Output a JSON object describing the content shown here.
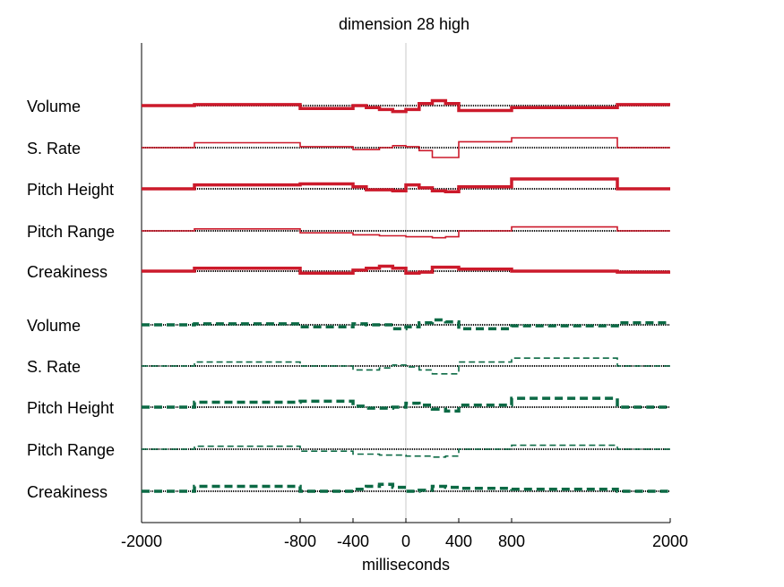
{
  "chart_data": {
    "type": "line",
    "title": "dimension 28 high",
    "xlabel": "milliseconds",
    "ylabel": "",
    "xlim": [
      -2000,
      2000
    ],
    "xticks": [
      -2000,
      -800,
      -400,
      0,
      400,
      800,
      2000
    ],
    "grid": false,
    "colors": {
      "high_group": "#cc1a2b",
      "low_group": "#0c6a45",
      "baseline": "#000000",
      "zero_line": "#c8c8c8"
    },
    "series": [
      {
        "label": "Volume",
        "group": "red",
        "style": "solid",
        "weight": "thick",
        "points": [
          [
            -2000,
            0
          ],
          [
            -1600,
            0
          ],
          [
            -1600,
            0.5
          ],
          [
            -800,
            0.5
          ],
          [
            -800,
            -1.5
          ],
          [
            -400,
            -1.5
          ],
          [
            -400,
            0
          ],
          [
            -300,
            0
          ],
          [
            -300,
            -1
          ],
          [
            -200,
            -1
          ],
          [
            -200,
            -2
          ],
          [
            -100,
            -2
          ],
          [
            -100,
            -3
          ],
          [
            0,
            -3
          ],
          [
            0,
            -2
          ],
          [
            100,
            -2
          ],
          [
            100,
            1
          ],
          [
            200,
            1
          ],
          [
            200,
            2.5
          ],
          [
            300,
            2.5
          ],
          [
            300,
            1
          ],
          [
            400,
            1
          ],
          [
            400,
            -2.5
          ],
          [
            800,
            -2.5
          ],
          [
            800,
            -1
          ],
          [
            1600,
            -1
          ],
          [
            1600,
            0.5
          ],
          [
            2000,
            0.5
          ]
        ]
      },
      {
        "label": "S. Rate",
        "group": "red",
        "style": "solid",
        "weight": "thin",
        "points": [
          [
            -2000,
            0
          ],
          [
            -1600,
            0
          ],
          [
            -1600,
            2.5
          ],
          [
            -800,
            2.5
          ],
          [
            -800,
            0.5
          ],
          [
            -400,
            0.5
          ],
          [
            -400,
            -1
          ],
          [
            -200,
            -1
          ],
          [
            -200,
            0
          ],
          [
            -100,
            0
          ],
          [
            -100,
            1
          ],
          [
            0,
            1
          ],
          [
            0,
            0.5
          ],
          [
            100,
            0.5
          ],
          [
            100,
            -1.5
          ],
          [
            200,
            -1.5
          ],
          [
            200,
            -5
          ],
          [
            400,
            -5
          ],
          [
            400,
            3
          ],
          [
            800,
            3
          ],
          [
            800,
            5
          ],
          [
            1600,
            5
          ],
          [
            1600,
            0
          ],
          [
            2000,
            0
          ]
        ]
      },
      {
        "label": "Pitch Height",
        "group": "red",
        "style": "solid",
        "weight": "thick",
        "points": [
          [
            -2000,
            0
          ],
          [
            -1600,
            0
          ],
          [
            -1600,
            2
          ],
          [
            -800,
            2
          ],
          [
            -800,
            2.5
          ],
          [
            -400,
            2.5
          ],
          [
            -400,
            1
          ],
          [
            -300,
            1
          ],
          [
            -300,
            -0.5
          ],
          [
            -100,
            -0.5
          ],
          [
            -100,
            -1
          ],
          [
            0,
            -1
          ],
          [
            0,
            2
          ],
          [
            100,
            2
          ],
          [
            100,
            0.5
          ],
          [
            200,
            0.5
          ],
          [
            200,
            -1
          ],
          [
            300,
            -1
          ],
          [
            300,
            -1.5
          ],
          [
            400,
            -1.5
          ],
          [
            400,
            1
          ],
          [
            800,
            1
          ],
          [
            800,
            5
          ],
          [
            1600,
            5
          ],
          [
            1600,
            0
          ],
          [
            2000,
            0
          ]
        ]
      },
      {
        "label": "Pitch Range",
        "group": "red",
        "style": "solid",
        "weight": "thin",
        "points": [
          [
            -2000,
            0
          ],
          [
            -1600,
            0
          ],
          [
            -1600,
            1
          ],
          [
            -800,
            1
          ],
          [
            -800,
            -1
          ],
          [
            -400,
            -1
          ],
          [
            -400,
            -2
          ],
          [
            -200,
            -2
          ],
          [
            -200,
            -2.5
          ],
          [
            0,
            -2.5
          ],
          [
            0,
            -3
          ],
          [
            200,
            -3
          ],
          [
            200,
            -3.5
          ],
          [
            300,
            -3.5
          ],
          [
            300,
            -3
          ],
          [
            400,
            -3
          ],
          [
            400,
            0
          ],
          [
            800,
            0
          ],
          [
            800,
            2
          ],
          [
            1600,
            2
          ],
          [
            1600,
            0
          ],
          [
            2000,
            0
          ]
        ]
      },
      {
        "label": "Creakiness",
        "group": "red",
        "style": "solid",
        "weight": "thick",
        "points": [
          [
            -2000,
            0
          ],
          [
            -1600,
            0
          ],
          [
            -1600,
            1.5
          ],
          [
            -800,
            1.5
          ],
          [
            -800,
            -1
          ],
          [
            -400,
            -1
          ],
          [
            -400,
            0.5
          ],
          [
            -300,
            0.5
          ],
          [
            -300,
            1.5
          ],
          [
            -200,
            1.5
          ],
          [
            -200,
            2.5
          ],
          [
            -100,
            2.5
          ],
          [
            -100,
            1.5
          ],
          [
            0,
            1.5
          ],
          [
            0,
            -1
          ],
          [
            100,
            -1
          ],
          [
            100,
            -0.5
          ],
          [
            200,
            -0.5
          ],
          [
            200,
            2
          ],
          [
            400,
            2
          ],
          [
            400,
            1
          ],
          [
            800,
            1
          ],
          [
            800,
            0
          ],
          [
            1600,
            0
          ],
          [
            1600,
            -0.5
          ],
          [
            2000,
            -0.5
          ]
        ]
      },
      {
        "label": "Volume",
        "group": "green",
        "style": "dashed",
        "weight": "thick",
        "points": [
          [
            -2000,
            0
          ],
          [
            -1600,
            0
          ],
          [
            -1600,
            0.5
          ],
          [
            -800,
            0.5
          ],
          [
            -800,
            -1
          ],
          [
            -400,
            -1
          ],
          [
            -400,
            0.5
          ],
          [
            -300,
            0.5
          ],
          [
            -300,
            0
          ],
          [
            -100,
            0
          ],
          [
            -100,
            -2
          ],
          [
            0,
            -2
          ],
          [
            0,
            -1
          ],
          [
            100,
            -1
          ],
          [
            100,
            1
          ],
          [
            200,
            1
          ],
          [
            200,
            2.5
          ],
          [
            300,
            2.5
          ],
          [
            300,
            1.5
          ],
          [
            400,
            1.5
          ],
          [
            400,
            -2
          ],
          [
            800,
            -2
          ],
          [
            800,
            -0.5
          ],
          [
            1600,
            -0.5
          ],
          [
            1600,
            1
          ],
          [
            2000,
            1
          ]
        ]
      },
      {
        "label": "S. Rate",
        "group": "green",
        "style": "dashed",
        "weight": "thin",
        "points": [
          [
            -2000,
            0
          ],
          [
            -1600,
            0
          ],
          [
            -1600,
            2
          ],
          [
            -800,
            2
          ],
          [
            -800,
            0
          ],
          [
            -400,
            0
          ],
          [
            -400,
            -2
          ],
          [
            -200,
            -2
          ],
          [
            -200,
            -1
          ],
          [
            -100,
            -1
          ],
          [
            -100,
            0.5
          ],
          [
            0,
            0.5
          ],
          [
            0,
            -0.5
          ],
          [
            100,
            -0.5
          ],
          [
            100,
            -2
          ],
          [
            200,
            -2
          ],
          [
            200,
            -4
          ],
          [
            400,
            -4
          ],
          [
            400,
            2
          ],
          [
            800,
            2
          ],
          [
            800,
            4
          ],
          [
            1600,
            4
          ],
          [
            1600,
            0
          ],
          [
            2000,
            0
          ]
        ]
      },
      {
        "label": "Pitch Height",
        "group": "green",
        "style": "dashed",
        "weight": "thick",
        "points": [
          [
            -2000,
            0
          ],
          [
            -1600,
            0
          ],
          [
            -1600,
            2.5
          ],
          [
            -800,
            2.5
          ],
          [
            -800,
            3
          ],
          [
            -400,
            3
          ],
          [
            -400,
            0.5
          ],
          [
            -300,
            0.5
          ],
          [
            -300,
            -0.5
          ],
          [
            -100,
            -0.5
          ],
          [
            -100,
            0
          ],
          [
            0,
            0
          ],
          [
            0,
            2
          ],
          [
            100,
            2
          ],
          [
            100,
            1
          ],
          [
            200,
            1
          ],
          [
            200,
            -1
          ],
          [
            300,
            -1
          ],
          [
            300,
            -2
          ],
          [
            400,
            -2
          ],
          [
            400,
            1
          ],
          [
            800,
            1
          ],
          [
            800,
            4.5
          ],
          [
            1600,
            4.5
          ],
          [
            1600,
            0
          ],
          [
            2000,
            0
          ]
        ]
      },
      {
        "label": "Pitch Range",
        "group": "green",
        "style": "dashed",
        "weight": "thin",
        "points": [
          [
            -2000,
            0
          ],
          [
            -1600,
            0
          ],
          [
            -1600,
            1.5
          ],
          [
            -800,
            1.5
          ],
          [
            -800,
            -1
          ],
          [
            -400,
            -1
          ],
          [
            -400,
            -2.5
          ],
          [
            -200,
            -2.5
          ],
          [
            -200,
            -3
          ],
          [
            0,
            -3
          ],
          [
            0,
            -3.5
          ],
          [
            200,
            -3.5
          ],
          [
            200,
            -4
          ],
          [
            300,
            -4
          ],
          [
            300,
            -3.5
          ],
          [
            400,
            -3.5
          ],
          [
            400,
            0
          ],
          [
            800,
            0
          ],
          [
            800,
            2
          ],
          [
            1600,
            2
          ],
          [
            1600,
            0
          ],
          [
            2000,
            0
          ]
        ]
      },
      {
        "label": "Creakiness",
        "group": "green",
        "style": "dashed",
        "weight": "thick",
        "points": [
          [
            -2000,
            0
          ],
          [
            -1600,
            0
          ],
          [
            -1600,
            2.5
          ],
          [
            -800,
            2.5
          ],
          [
            -800,
            0
          ],
          [
            -400,
            0
          ],
          [
            -400,
            1
          ],
          [
            -300,
            1
          ],
          [
            -300,
            2.5
          ],
          [
            -200,
            2.5
          ],
          [
            -200,
            3.5
          ],
          [
            -100,
            3.5
          ],
          [
            -100,
            2
          ],
          [
            0,
            2
          ],
          [
            0,
            0
          ],
          [
            100,
            0
          ],
          [
            100,
            0.5
          ],
          [
            200,
            0.5
          ],
          [
            200,
            2.5
          ],
          [
            300,
            2.5
          ],
          [
            300,
            2
          ],
          [
            400,
            2
          ],
          [
            400,
            1.5
          ],
          [
            800,
            1.5
          ],
          [
            800,
            1
          ],
          [
            1600,
            1
          ],
          [
            1600,
            0
          ],
          [
            2000,
            0
          ]
        ]
      }
    ]
  }
}
